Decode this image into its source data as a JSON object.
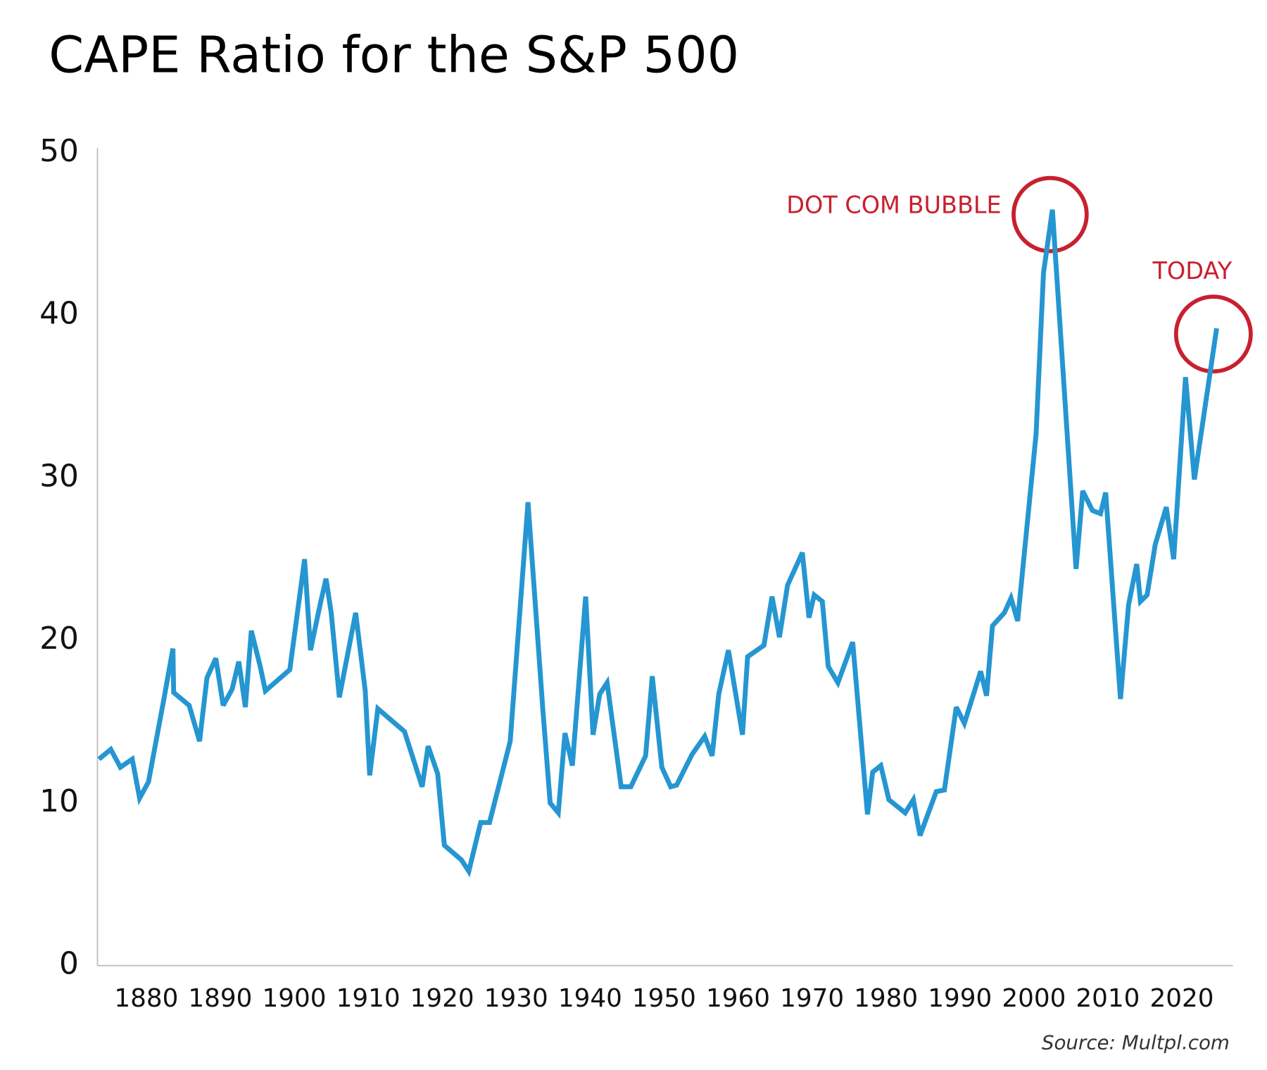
{
  "chart_data": {
    "type": "line",
    "title": "CAPE Ratio for the S&P 500",
    "source": "Source: Multpl.com",
    "annotations": [
      "DOT COM BUBBLE",
      "TODAY"
    ],
    "annotation_color": "#c8202f",
    "grid": false,
    "xlim": [
      1873.4,
      2026.9
    ],
    "ylim": [
      0,
      50
    ],
    "xticks": [
      1880,
      1890,
      1900,
      1910,
      1920,
      1930,
      1940,
      1950,
      1960,
      1970,
      1980,
      1990,
      2000,
      2010,
      2020
    ],
    "yticks": [
      0,
      10,
      20,
      30,
      40,
      50
    ],
    "series": [
      {
        "color": "#2596d1",
        "x": [
          1873.6,
          1875.2,
          1876.5,
          1878.1,
          1879.1,
          1880.3,
          1882.5,
          1883.6,
          1883.7,
          1885.8,
          1887.2,
          1888.2,
          1889.4,
          1890.4,
          1891.6,
          1892.5,
          1893.4,
          1894.2,
          1895.4,
          1896.1,
          1899.4,
          1901.4,
          1902.2,
          1903.5,
          1904.3,
          1905.0,
          1906.1,
          1908.3,
          1909.6,
          1910.2,
          1911.3,
          1914.9,
          1917.3,
          1918.1,
          1919.4,
          1920.3,
          1922.6,
          1923.6,
          1925.2,
          1926.4,
          1929.2,
          1931.6,
          1933.6,
          1934.6,
          1935.7,
          1936.6,
          1937.6,
          1939.4,
          1940.4,
          1941.3,
          1942.3,
          1944.2,
          1945.5,
          1947.5,
          1948.4,
          1949.7,
          1950.9,
          1951.7,
          1953.8,
          1955.5,
          1956.5,
          1957.4,
          1958.7,
          1960.6,
          1961.3,
          1963.5,
          1964.6,
          1965.6,
          1966.7,
          1968.7,
          1969.6,
          1970.3,
          1971.4,
          1972.2,
          1973.5,
          1975.5,
          1977.5,
          1978.2,
          1979.3,
          1980.4,
          1982.6,
          1983.7,
          1984.6,
          1986.8,
          1987.9,
          1989.5,
          1990.6,
          1992.8,
          1993.6,
          1994.4,
          1996.0,
          1996.9,
          1997.8,
          2000.3,
          2001.3,
          2002.5,
          2005.7,
          2006.6,
          2007.9,
          2009.0,
          2009.7,
          2011.7,
          2012.8,
          2013.9,
          2014.4,
          2015.3,
          2016.4,
          2017.9,
          2018.9,
          2020.5,
          2021.7,
          2024.7
        ],
        "values": [
          12.7,
          13.3,
          12.2,
          12.7,
          10.3,
          11.3,
          16.7,
          19.5,
          16.8,
          16.0,
          13.8,
          17.7,
          18.9,
          16.0,
          17.0,
          18.7,
          15.9,
          20.6,
          18.4,
          16.9,
          18.2,
          25.0,
          19.4,
          22.2,
          23.8,
          21.7,
          16.5,
          21.7,
          16.9,
          11.7,
          15.8,
          14.4,
          11.0,
          13.5,
          11.8,
          7.4,
          6.5,
          5.8,
          8.8,
          8.8,
          13.8,
          28.5,
          15.8,
          10.0,
          9.4,
          14.3,
          12.3,
          22.7,
          14.2,
          16.7,
          17.4,
          11.0,
          11.0,
          12.9,
          17.8,
          12.2,
          11.0,
          11.1,
          13.0,
          14.1,
          12.9,
          16.7,
          19.4,
          14.2,
          19.0,
          19.7,
          22.7,
          20.2,
          23.4,
          25.4,
          21.4,
          22.8,
          22.4,
          18.4,
          17.4,
          19.9,
          9.3,
          11.9,
          12.3,
          10.2,
          9.4,
          10.2,
          8.0,
          10.7,
          10.8,
          15.9,
          14.9,
          18.1,
          16.6,
          20.9,
          21.7,
          22.6,
          21.2,
          32.7,
          42.6,
          46.5,
          24.4,
          29.2,
          28.0,
          27.8,
          29.1,
          16.4,
          22.2,
          24.7,
          22.4,
          22.8,
          25.9,
          28.2,
          25.0,
          36.2,
          29.9,
          39.2
        ]
      }
    ]
  }
}
